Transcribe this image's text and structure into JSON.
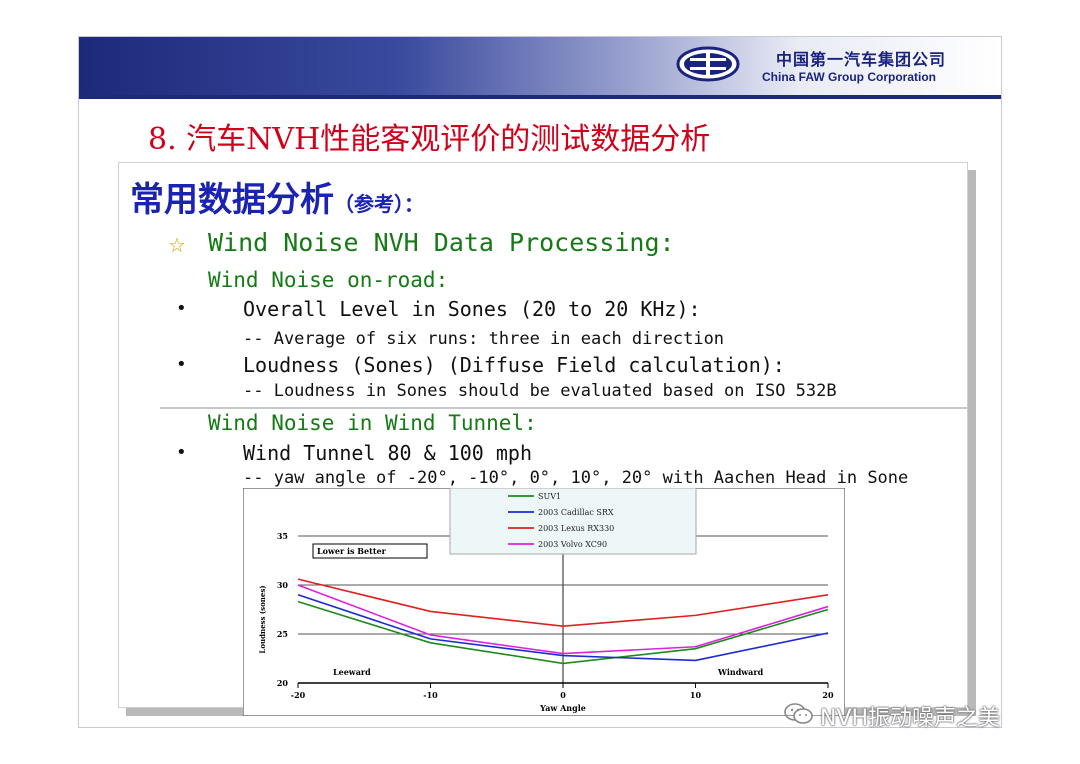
{
  "header": {
    "company_cn": "中国第一汽车集团公司",
    "company_en": "China FAW Group Corporation"
  },
  "slide": {
    "title": "8. 汽车NVH性能客观评价的测试数据分析",
    "section_heading": "常用数据分析",
    "section_note": "（参考）：",
    "main_heading": "Wind Noise NVH Data Processing:",
    "onroad_heading": "Wind Noise on-road:",
    "onroad_items": [
      {
        "bullet": "•",
        "text": "Overall Level in Sones (20 to 20 KHz):",
        "sub": "-- Average of six runs: three in each direction"
      },
      {
        "bullet": "•",
        "text": "Loudness (Sones) (Diffuse Field calculation):",
        "sub": "-- Loudness in Sones should be evaluated based on ISO 532B"
      }
    ],
    "tunnel_heading": "Wind Noise in Wind Tunnel:",
    "tunnel_items": [
      {
        "bullet": "•",
        "text": "Wind Tunnel 80 & 100 mph",
        "sub": "-- yaw angle of -20°,  -10°,  0°, 10°, 20° with Aachen Head in Sone"
      }
    ]
  },
  "chart_data": {
    "type": "line",
    "x": [
      -20,
      -10,
      0,
      10,
      20
    ],
    "xlabel": "Yaw Angle",
    "ylabel": "Loudness (sones)",
    "ylim": [
      20,
      35
    ],
    "xlim": [
      -20,
      20
    ],
    "x_ticks": [
      "-20",
      "-10",
      "0",
      "10",
      "20"
    ],
    "y_ticks": [
      "20",
      "25",
      "30",
      "35"
    ],
    "annotations": [
      "Lower is Better",
      "Leeward",
      "Windward"
    ],
    "legend_placement": "top-center",
    "grid": true,
    "series": [
      {
        "name": "SUV1",
        "color": "#1e8a1e",
        "values": [
          28.3,
          24.1,
          22.0,
          23.5,
          27.5
        ]
      },
      {
        "name": "2003 Cadillac SRX",
        "color": "#1c2ad6",
        "values": [
          29.0,
          24.5,
          22.8,
          22.3,
          25.1
        ]
      },
      {
        "name": "2003 Lexus RX330",
        "color": "#e02020",
        "values": [
          30.6,
          27.3,
          25.8,
          26.9,
          29.0
        ]
      },
      {
        "name": "2003 Volvo XC90",
        "color": "#e020e0",
        "values": [
          30.0,
          24.9,
          23.0,
          23.7,
          27.8
        ]
      }
    ]
  },
  "watermark": {
    "text": "NVH振动噪声之美"
  }
}
